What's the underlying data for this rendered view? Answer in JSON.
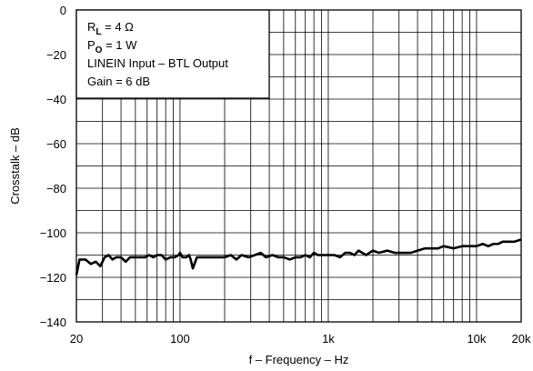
{
  "chart_data": {
    "type": "line",
    "xscale": "log",
    "xlim": [
      20,
      20000
    ],
    "ylim": [
      -140,
      0
    ],
    "xlabel": "f – Frequency – Hz",
    "ylabel": "Crosstalk – dB",
    "grid": true,
    "x_ticks": [
      {
        "value": 20,
        "label": "20"
      },
      {
        "value": 100,
        "label": "100"
      },
      {
        "value": 1000,
        "label": "1k"
      },
      {
        "value": 10000,
        "label": "10k"
      },
      {
        "value": 20000,
        "label": "20k"
      }
    ],
    "y_ticks": [
      {
        "value": 0,
        "label": "0"
      },
      {
        "value": -20,
        "label": "−20"
      },
      {
        "value": -40,
        "label": "−40"
      },
      {
        "value": -60,
        "label": "−60"
      },
      {
        "value": -80,
        "label": "−80"
      },
      {
        "value": -100,
        "label": "−100"
      },
      {
        "value": -120,
        "label": "−120"
      },
      {
        "value": -140,
        "label": "−140"
      }
    ],
    "legend": {
      "placement": "top-left",
      "lines": [
        {
          "main": "R",
          "sub": "L",
          "rest": " = 4 Ω"
        },
        {
          "main": "P",
          "sub": "O",
          "rest": " = 1 W"
        },
        {
          "main": "LINEIN Input – BTL Output",
          "sub": "",
          "rest": ""
        },
        {
          "main": "Gain = 6 dB",
          "sub": "",
          "rest": ""
        }
      ]
    },
    "series": [
      {
        "color": "#000000",
        "x": [
          20,
          21,
          22,
          23,
          25,
          27,
          29,
          31,
          33,
          35,
          37,
          40,
          43,
          46,
          50,
          54,
          58,
          62,
          66,
          70,
          75,
          80,
          86,
          92,
          98,
          100,
          104,
          110,
          115,
          118,
          122,
          130,
          140,
          150,
          165,
          180,
          200,
          220,
          240,
          260,
          290,
          320,
          350,
          380,
          420,
          460,
          500,
          550,
          600,
          650,
          700,
          750,
          800,
          850,
          900,
          950,
          1000,
          1100,
          1200,
          1300,
          1400,
          1500,
          1600,
          1800,
          2000,
          2200,
          2500,
          2800,
          3000,
          3300,
          3600,
          4000,
          4500,
          5000,
          5500,
          6000,
          7000,
          8000,
          9000,
          10000,
          11000,
          12000,
          13000,
          14000,
          15000,
          16000,
          18000,
          20000
        ],
        "y": [
          -119,
          -112,
          -112,
          -112,
          -114,
          -113,
          -115,
          -111,
          -110,
          -112,
          -111,
          -111,
          -113,
          -111,
          -111,
          -111,
          -111,
          -110,
          -111,
          -110,
          -110,
          -112,
          -111,
          -111,
          -110,
          -109,
          -111,
          -111,
          -110,
          -112,
          -116,
          -111,
          -111,
          -111,
          -111,
          -111,
          -111,
          -110,
          -112,
          -110,
          -111,
          -110,
          -109,
          -111,
          -110,
          -111,
          -111,
          -112,
          -111,
          -111,
          -110,
          -111,
          -109,
          -110,
          -110,
          -110,
          -110,
          -110,
          -111,
          -109,
          -109,
          -110,
          -108,
          -110,
          -108,
          -109,
          -108,
          -109,
          -109,
          -109,
          -109,
          -108,
          -107,
          -107,
          -107,
          -106,
          -107,
          -106,
          -106,
          -106,
          -105,
          -106,
          -105,
          -105,
          -104,
          -104,
          -104,
          -103
        ]
      }
    ]
  }
}
